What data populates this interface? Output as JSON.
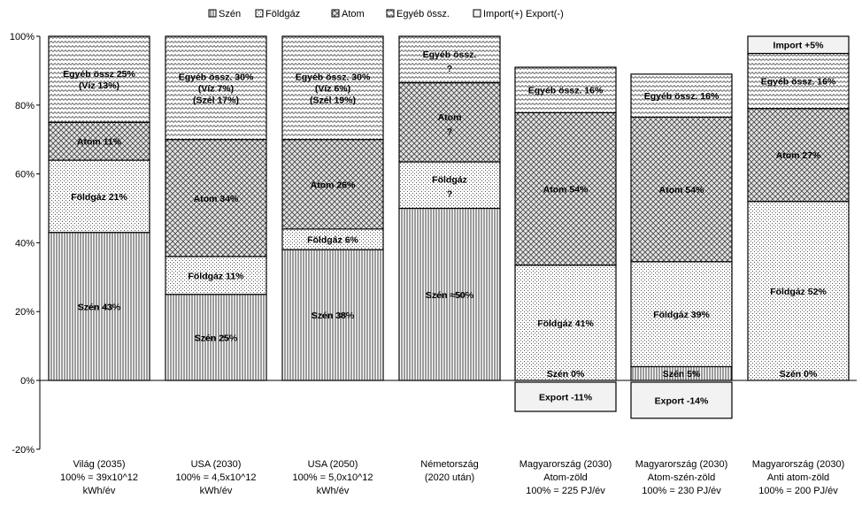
{
  "chart_data": {
    "type": "bar",
    "stacked": true,
    "title": "",
    "xlabel": "",
    "ylabel": "",
    "ylim": [
      -20,
      100
    ],
    "yticks": [
      -20,
      0,
      20,
      40,
      60,
      80,
      100
    ],
    "ytick_labels": [
      "-20%",
      "0%",
      "20%",
      "40%",
      "60%",
      "80%",
      "100%"
    ],
    "legend_position": "top-center",
    "legend": [
      {
        "key": "szen",
        "label": "Szén",
        "pattern": "vlines"
      },
      {
        "key": "foldgaz",
        "label": "Földgáz",
        "pattern": "dots"
      },
      {
        "key": "atom",
        "label": "Atom",
        "pattern": "cross"
      },
      {
        "key": "egyeb",
        "label": "Egyéb össz.",
        "pattern": "wave"
      },
      {
        "key": "import",
        "label": "Import(+) Export(-)",
        "pattern": "plain"
      }
    ],
    "categories": [
      {
        "name": [
          "Világ (2035)",
          "100% = 39x10^12",
          "kWh/év"
        ],
        "segments": [
          {
            "series": "szen",
            "value": 43,
            "label": [
              "Szén 43%"
            ]
          },
          {
            "series": "foldgaz",
            "value": 21,
            "label": [
              "Földgáz 21%"
            ]
          },
          {
            "series": "atom",
            "value": 11,
            "label": [
              "Atom 11%"
            ]
          },
          {
            "series": "egyeb",
            "value": 25,
            "label": [
              "Egyéb össz 25%",
              "(Víz 13%)"
            ]
          }
        ]
      },
      {
        "name": [
          "USA (2030)",
          "100% = 4,5x10^12",
          "kWh/év"
        ],
        "segments": [
          {
            "series": "szen",
            "value": 25,
            "label": [
              "Szén 25%"
            ]
          },
          {
            "series": "foldgaz",
            "value": 11,
            "label": [
              "Földgáz 11%"
            ]
          },
          {
            "series": "atom",
            "value": 34,
            "label": [
              "Atom 34%"
            ]
          },
          {
            "series": "egyeb",
            "value": 30,
            "label": [
              "Egyéb össz. 30%",
              "(Víz 7%)",
              "(Szél 17%)"
            ]
          }
        ]
      },
      {
        "name": [
          "USA (2050)",
          "100% = 5,0x10^12",
          "kWh/év"
        ],
        "segments": [
          {
            "series": "szen",
            "value": 38,
            "label": [
              "Szén 38%"
            ]
          },
          {
            "series": "foldgaz",
            "value": 6,
            "label": [
              "Földgáz 6%"
            ]
          },
          {
            "series": "atom",
            "value": 26,
            "label": [
              "Atom 26%"
            ]
          },
          {
            "series": "egyeb",
            "value": 30,
            "label": [
              "Egyéb össz. 30%",
              "(Víz 6%)",
              "(Szél 19%)"
            ]
          }
        ]
      },
      {
        "name": [
          "Németország",
          "(2020 után)"
        ],
        "segments": [
          {
            "series": "szen",
            "value": 50,
            "label": [
              "Szén ≈50%"
            ]
          },
          {
            "series": "foldgaz",
            "value": 13.5,
            "label": [
              "Földgáz",
              "?"
            ]
          },
          {
            "series": "atom",
            "value": 23,
            "label": [
              "Atom",
              "?"
            ]
          },
          {
            "series": "egyeb",
            "value": 13.5,
            "label": [
              "Egyéb össz.",
              "?"
            ]
          }
        ]
      },
      {
        "name": [
          "Magyarország (2030)",
          "Atom-zöld",
          "100% = 225 PJ/év"
        ],
        "segments": [
          {
            "series": "szen",
            "value": 0,
            "label": [
              "Szén 0%"
            ]
          },
          {
            "series": "foldgaz",
            "value": 33.5,
            "label": [
              "Földgáz 41%"
            ]
          },
          {
            "series": "atom",
            "value": 44.3,
            "label": [
              "Atom 54%"
            ]
          },
          {
            "series": "egyeb",
            "value": 13.2,
            "label": [
              "Egyéb össz. 16%"
            ]
          },
          {
            "series": "import",
            "value": -9,
            "label": [
              "Export -11%"
            ]
          }
        ]
      },
      {
        "name": [
          "Magyarország (2030)",
          "Atom-szén-zöld",
          "100% = 230 PJ/év"
        ],
        "segments": [
          {
            "series": "szen",
            "value": 4,
            "label": [
              "Szén 5%"
            ]
          },
          {
            "series": "foldgaz",
            "value": 30.5,
            "label": [
              "Földgáz 39%"
            ]
          },
          {
            "series": "atom",
            "value": 42,
            "label": [
              "Atom 54%"
            ]
          },
          {
            "series": "egyeb",
            "value": 12.5,
            "label": [
              "Egyéb össz. 16%"
            ]
          },
          {
            "series": "import",
            "value": -11,
            "label": [
              "Export -14%"
            ]
          }
        ]
      },
      {
        "name": [
          "Magyarország (2030)",
          "Anti atom-zöld",
          "100% = 200 PJ/év"
        ],
        "segments": [
          {
            "series": "szen",
            "value": 0,
            "label": [
              "Szén 0%"
            ]
          },
          {
            "series": "foldgaz",
            "value": 52,
            "label": [
              "Földgáz 52%"
            ]
          },
          {
            "series": "atom",
            "value": 27,
            "label": [
              "Atom 27%"
            ]
          },
          {
            "series": "egyeb",
            "value": 16,
            "label": [
              "Egyéb össz. 16%"
            ]
          },
          {
            "series": "import",
            "value": 5,
            "label": [
              "Import +5%"
            ]
          }
        ]
      }
    ]
  }
}
